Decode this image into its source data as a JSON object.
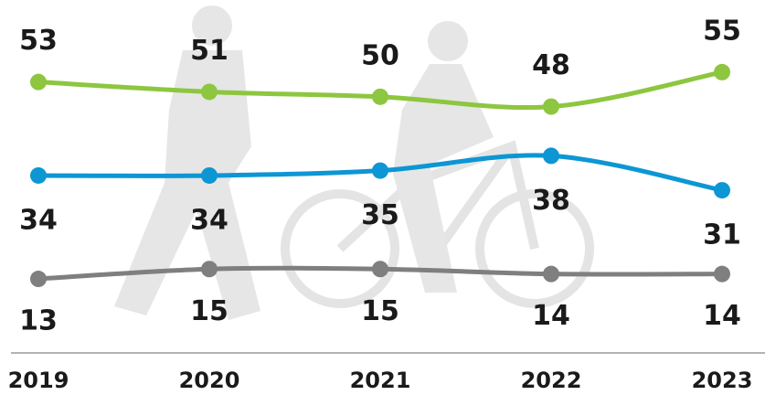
{
  "chart_data": {
    "type": "line",
    "categories": [
      "2019",
      "2020",
      "2021",
      "2022",
      "2023"
    ],
    "series": [
      {
        "color": "#8dc63f",
        "values": [
          53,
          51,
          50,
          48,
          55
        ]
      },
      {
        "color": "#0d96d4",
        "values": [
          34,
          34,
          35,
          38,
          31
        ]
      },
      {
        "color": "#7f7f7f",
        "values": [
          13,
          15,
          15,
          14,
          14
        ]
      }
    ],
    "ylim": [
      0,
      60
    ]
  }
}
